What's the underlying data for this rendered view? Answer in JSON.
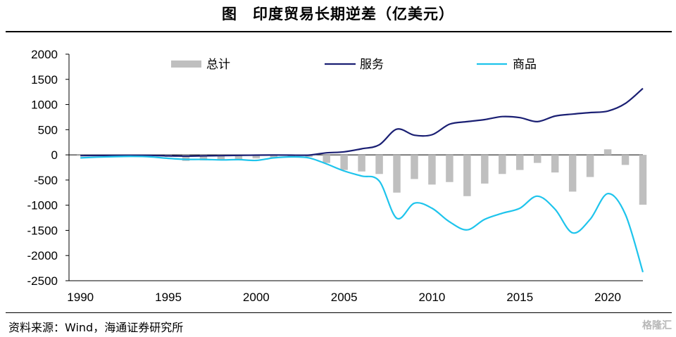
{
  "title": "图　印度贸易长期逆差（亿美元）",
  "source": "资料来源：Wind，海通证券研究所",
  "watermark": "格隆汇",
  "colors": {
    "total": "#bfbfbf",
    "services": "#1a1f73",
    "goods": "#1ec4ec"
  },
  "chart_data": {
    "type": "bar+line",
    "x": [
      1990,
      1991,
      1992,
      1993,
      1994,
      1995,
      1996,
      1997,
      1998,
      1999,
      2000,
      2001,
      2002,
      2003,
      2004,
      2005,
      2006,
      2007,
      2008,
      2009,
      2010,
      2011,
      2012,
      2013,
      2014,
      2015,
      2016,
      2017,
      2018,
      2019,
      2020,
      2021,
      2022
    ],
    "xticks": [
      "1990",
      "1995",
      "2000",
      "2005",
      "2010",
      "2015",
      "2020"
    ],
    "yticks": [
      "2000",
      "1500",
      "1000",
      "500",
      "0",
      "-500",
      "-1000",
      "-1500",
      "-2000",
      "-2500"
    ],
    "ylim": [
      -2500,
      2000
    ],
    "legend": [
      "总计",
      "服务",
      "商品"
    ],
    "series": [
      {
        "name": "总计",
        "kind": "bar",
        "values": [
          -20,
          -15,
          -10,
          -12,
          -15,
          -40,
          -120,
          -110,
          -100,
          -90,
          -70,
          -60,
          -40,
          -40,
          -160,
          -300,
          -330,
          -380,
          -750,
          -480,
          -590,
          -540,
          -820,
          -570,
          -380,
          -300,
          -160,
          -350,
          -730,
          -440,
          110,
          -200,
          -990
        ]
      },
      {
        "name": "服务",
        "kind": "line",
        "values": [
          -15,
          -12,
          -10,
          -8,
          -10,
          -20,
          -25,
          -20,
          -15,
          -10,
          -5,
          -2,
          -5,
          -5,
          40,
          60,
          120,
          200,
          510,
          390,
          400,
          610,
          660,
          700,
          760,
          740,
          660,
          770,
          810,
          840,
          870,
          1020,
          1320
        ]
      },
      {
        "name": "商品",
        "kind": "line",
        "values": [
          -60,
          -45,
          -35,
          -30,
          -40,
          -70,
          -90,
          -90,
          -100,
          -95,
          -110,
          -60,
          -40,
          -60,
          -180,
          -320,
          -420,
          -520,
          -1260,
          -960,
          -1060,
          -1330,
          -1490,
          -1280,
          -1160,
          -1060,
          -820,
          -1080,
          -1550,
          -1280,
          -770,
          -1180,
          -2330
        ]
      }
    ]
  }
}
